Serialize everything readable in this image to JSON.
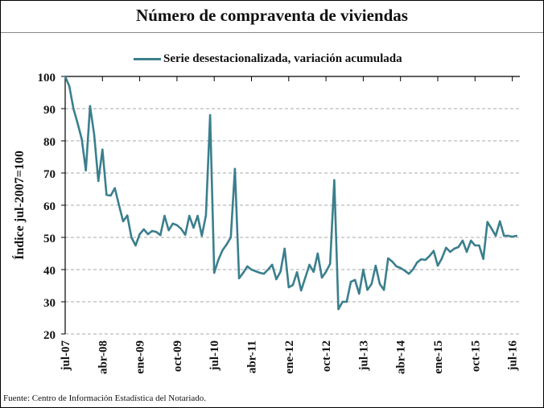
{
  "chart_data": {
    "type": "line",
    "title": "Número de compraventa de viviendas",
    "ylabel": "Índice jul-2007=100",
    "xlabel": "",
    "ylim": [
      20,
      100
    ],
    "yticks": [
      20,
      30,
      40,
      50,
      60,
      70,
      80,
      90,
      100
    ],
    "xtick_labels": [
      "jul-07",
      "abr-08",
      "ene-09",
      "oct-09",
      "jul-10",
      "abr-11",
      "ene-12",
      "oct-12",
      "jul-13",
      "abr-14",
      "ene-15",
      "oct-15",
      "jul-16"
    ],
    "grid": "horizontal dashed",
    "legend_position": "top",
    "source": "Fuente: Centro de Información Estadística del Notariado.",
    "x": [
      "jul-07",
      "ago-07",
      "sep-07",
      "oct-07",
      "nov-07",
      "dic-07",
      "ene-08",
      "feb-08",
      "mar-08",
      "abr-08",
      "may-08",
      "jun-08",
      "jul-08",
      "ago-08",
      "sep-08",
      "oct-08",
      "nov-08",
      "dic-08",
      "ene-09",
      "feb-09",
      "mar-09",
      "abr-09",
      "may-09",
      "jun-09",
      "jul-09",
      "ago-09",
      "sep-09",
      "oct-09",
      "nov-09",
      "dic-09",
      "ene-10",
      "feb-10",
      "mar-10",
      "abr-10",
      "may-10",
      "jun-10",
      "jul-10",
      "ago-10",
      "sep-10",
      "oct-10",
      "nov-10",
      "dic-10",
      "ene-11",
      "feb-11",
      "mar-11",
      "abr-11",
      "may-11",
      "jun-11",
      "jul-11",
      "ago-11",
      "sep-11",
      "oct-11",
      "nov-11",
      "dic-11",
      "ene-12",
      "feb-12",
      "mar-12",
      "abr-12",
      "may-12",
      "jun-12",
      "jul-12",
      "ago-12",
      "sep-12",
      "oct-12",
      "nov-12",
      "dic-12",
      "ene-13",
      "feb-13",
      "mar-13",
      "abr-13",
      "may-13",
      "jun-13",
      "jul-13",
      "ago-13",
      "sep-13",
      "oct-13",
      "nov-13",
      "dic-13",
      "ene-14",
      "feb-14",
      "mar-14",
      "abr-14",
      "may-14",
      "jun-14",
      "jul-14",
      "ago-14",
      "sep-14",
      "oct-14",
      "nov-14",
      "dic-14",
      "ene-15",
      "feb-15",
      "mar-15",
      "abr-15",
      "may-15",
      "jun-15",
      "jul-15",
      "ago-15",
      "sep-15",
      "oct-15",
      "nov-15",
      "dic-15",
      "ene-16",
      "feb-16",
      "mar-16",
      "abr-16",
      "may-16",
      "jun-16",
      "jul-16",
      "ago-16"
    ],
    "series": [
      {
        "name": "Serie desestacionalizada, variación acumulada",
        "color": "#3b7f8d",
        "values": [
          100,
          97,
          90,
          85.5,
          80.5,
          70.8,
          90.8,
          82,
          67.5,
          77.3,
          63.2,
          63,
          65.3,
          60,
          55,
          56.8,
          50,
          47.5,
          51,
          52.5,
          51,
          52,
          51.7,
          50.7,
          56.7,
          52.2,
          54.3,
          53.8,
          52.7,
          50.8,
          56.7,
          53,
          56.7,
          50.5,
          56.8,
          88,
          39,
          43,
          46,
          47.8,
          50,
          71.3,
          37.3,
          39,
          41,
          40,
          39.5,
          39,
          38.7,
          40,
          41.5,
          37,
          39.3,
          46.5,
          34.5,
          35.2,
          39.2,
          33.5,
          37.5,
          41.5,
          39.3,
          45,
          37.5,
          39.3,
          41.8,
          67.8,
          27.7,
          30,
          30,
          36.2,
          36.8,
          32.5,
          40,
          33.7,
          35.5,
          41.2,
          35.5,
          33.7,
          43.5,
          42.5,
          41,
          40.5,
          39.7,
          38.7,
          40,
          42.2,
          43.2,
          43,
          44.2,
          45.8,
          41.2,
          43.5,
          46.8,
          45.5,
          46.5,
          47,
          49,
          45.5,
          49,
          47.5,
          47.5,
          43.3,
          54.8,
          52.7,
          50.5,
          55,
          50.5,
          50.5,
          50.2,
          50.5
        ]
      }
    ]
  }
}
